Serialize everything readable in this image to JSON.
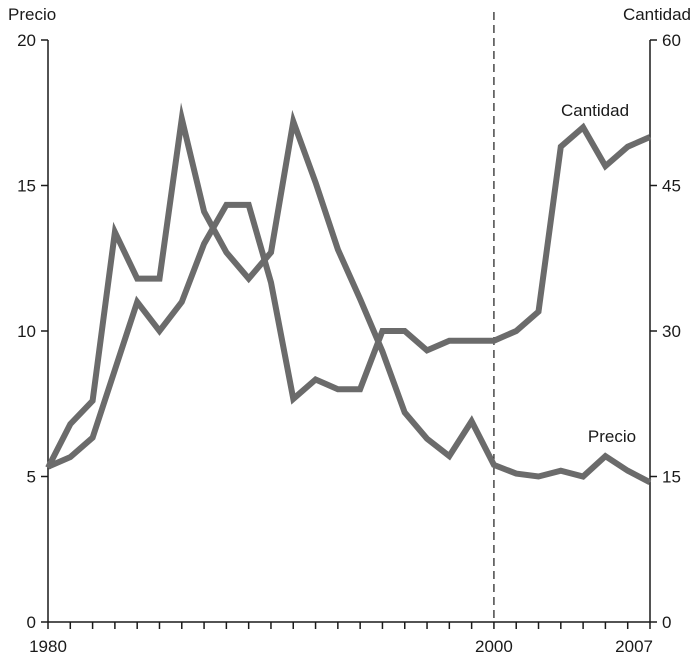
{
  "chart_data": {
    "type": "line",
    "title": "",
    "x_start": 1980,
    "x": [
      1980,
      1981,
      1982,
      1983,
      1984,
      1985,
      1986,
      1987,
      1988,
      1989,
      1990,
      1991,
      1992,
      1993,
      1994,
      1995,
      1996,
      1997,
      1998,
      1999,
      2000,
      2001,
      2002,
      2003,
      2004,
      2005,
      2006,
      2007
    ],
    "x_tick_labels": [
      "1980",
      "2000",
      "2007"
    ],
    "x_ticks": [
      1980,
      1981,
      1982,
      1983,
      1984,
      1985,
      1986,
      1987,
      1988,
      1989,
      1990,
      1991,
      1992,
      1993,
      1994,
      1995,
      1996,
      1997,
      1998,
      1999,
      2000,
      2001,
      2002,
      2003,
      2004,
      2005,
      2006,
      2007
    ],
    "x_labeled_ticks": [
      1980,
      2000,
      2007
    ],
    "reference_line_x": 2000,
    "left_axis": {
      "label": "Precio",
      "ylim": [
        0,
        20
      ],
      "ticks": [
        0,
        5,
        10,
        15,
        20
      ],
      "tick_labels": [
        "0",
        "5",
        "10",
        "15",
        "20"
      ]
    },
    "right_axis": {
      "label": "Cantidad",
      "ylim": [
        0,
        60
      ],
      "ticks": [
        0,
        15,
        30,
        45,
        60
      ],
      "tick_labels": [
        "0",
        "15",
        "30",
        "45",
        "60"
      ]
    },
    "series": [
      {
        "name": "Precio",
        "axis": "left",
        "color": "#6b6b6b",
        "values": [
          5.3,
          6.8,
          7.6,
          13.4,
          11.8,
          11.8,
          17.3,
          14.1,
          12.7,
          11.8,
          12.7,
          17.2,
          15.1,
          12.8,
          11.1,
          9.3,
          7.2,
          6.3,
          5.7,
          6.9,
          5.4,
          5.1,
          5.0,
          5.2,
          5.0,
          5.7,
          5.2,
          4.8
        ]
      },
      {
        "name": "Cantidad",
        "axis": "right",
        "color": "#6b6b6b",
        "values": [
          16,
          17,
          19,
          26,
          33,
          30,
          33,
          39,
          43,
          43,
          35,
          23,
          25,
          24,
          24,
          30,
          30,
          28,
          29,
          29,
          29,
          30,
          32,
          49,
          51,
          47,
          49,
          50
        ]
      }
    ],
    "grid": false,
    "legend": "none"
  }
}
